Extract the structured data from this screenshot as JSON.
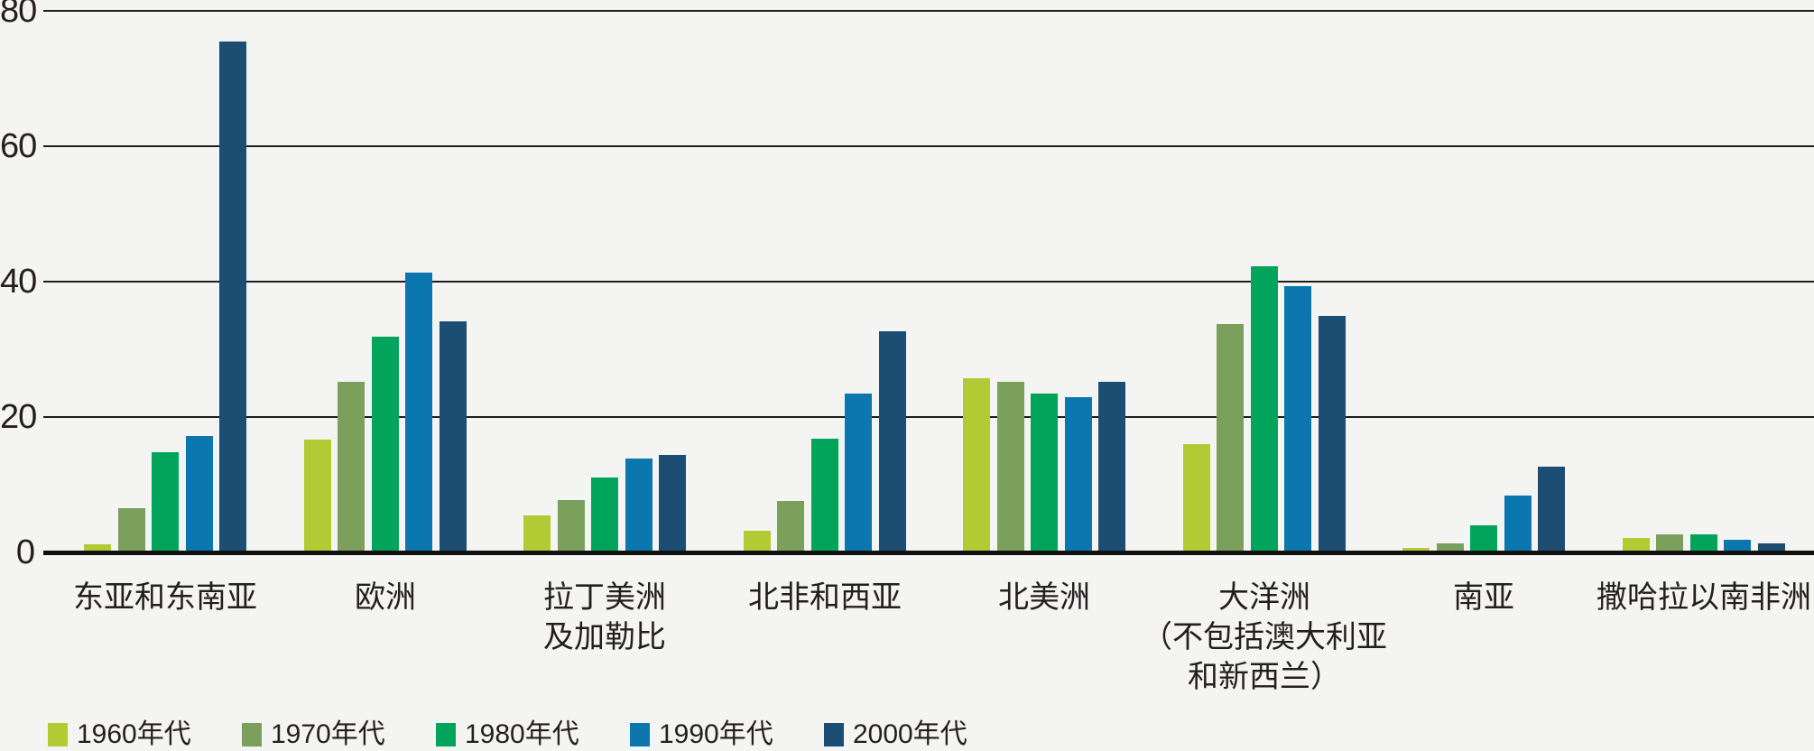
{
  "chart_data": {
    "type": "bar",
    "title": "",
    "xlabel": "",
    "ylabel": "",
    "ylim": [
      0,
      80
    ],
    "yticks": [
      0,
      20,
      40,
      60,
      80
    ],
    "grid": true,
    "legend_position": "bottom",
    "background_color": "#f4f4f2",
    "gridline_color": "#1d1d1b",
    "text_color": "#231f20",
    "categories": [
      "东亚和东南亚",
      "欧洲",
      "拉丁美洲及加勒比",
      "北非和西亚",
      "北美洲",
      "大洋洲（不包括澳大利亚和新西兰）",
      "南亚",
      "撒哈拉以南非洲"
    ],
    "category_lines": [
      [
        "东亚和东南亚"
      ],
      [
        "欧洲"
      ],
      [
        "拉丁美洲",
        "及加勒比"
      ],
      [
        "北非和西亚"
      ],
      [
        "北美洲"
      ],
      [
        "大洋洲",
        "（不包括澳大利亚",
        "和新西兰）"
      ],
      [
        "南亚"
      ],
      [
        "撒哈拉以南非洲"
      ]
    ],
    "series": [
      {
        "name": "1960年代",
        "color": "#b2cb35",
        "values": [
          1.2,
          16.6,
          5.4,
          3.2,
          25.7,
          16.0,
          0.6,
          2.1
        ]
      },
      {
        "name": "1970年代",
        "color": "#7aa05c",
        "values": [
          6.5,
          25.2,
          7.7,
          7.6,
          25.2,
          33.8,
          1.3,
          2.6
        ]
      },
      {
        "name": "1980年代",
        "color": "#00a55b",
        "values": [
          14.8,
          31.9,
          11.1,
          16.8,
          23.4,
          42.3,
          4.0,
          2.6
        ]
      },
      {
        "name": "1990年代",
        "color": "#0b77ae",
        "values": [
          17.2,
          41.3,
          13.8,
          23.5,
          22.9,
          39.3,
          8.4,
          1.9
        ]
      },
      {
        "name": "2000年代",
        "color": "#1c4d72",
        "values": [
          75.5,
          34.1,
          14.4,
          32.6,
          25.2,
          34.9,
          12.7,
          1.3
        ]
      }
    ]
  }
}
